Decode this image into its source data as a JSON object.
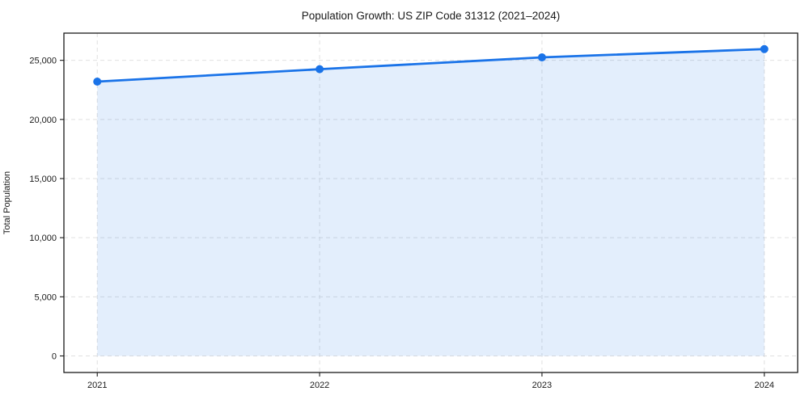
{
  "figure": {
    "background": "#ffffff"
  },
  "chart_data": {
    "type": "line",
    "title": "Population Growth: US ZIP Code 31312 (2021–2024)",
    "xlabel": "",
    "ylabel": "Total Population",
    "x": [
      2021,
      2022,
      2023,
      2024
    ],
    "series": [
      {
        "name": "Total Population",
        "values": [
          23200,
          24250,
          25250,
          25950
        ]
      }
    ],
    "xticks": {
      "values": [
        2021,
        2022,
        2023,
        2024
      ],
      "labels": [
        "2021",
        "2022",
        "2023",
        "2024"
      ]
    },
    "yticks": {
      "values": [
        0,
        5000,
        10000,
        15000,
        20000,
        25000
      ],
      "labels": [
        "0",
        "5,000",
        "10,000",
        "15,000",
        "20,000",
        "25,000"
      ]
    },
    "xlim": [
      2020.85,
      2024.15
    ],
    "ylim": [
      -1400,
      27300
    ],
    "grid": true,
    "grid_style": "dashed",
    "legend": "none",
    "area_fill": true,
    "fill_baseline": 0,
    "marker": "circle",
    "marker_radius": 5,
    "colors": {
      "line": "#1a73e8",
      "marker": "#1a73e8",
      "fill": "rgba(26,115,232,0.12)",
      "grid": "#e0e0e0",
      "axis": "#1a1a1a",
      "text": "#1a1a1a"
    }
  }
}
